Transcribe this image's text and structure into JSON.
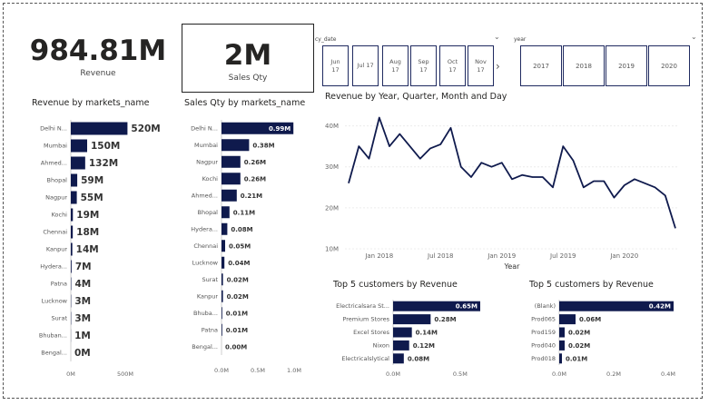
{
  "kpi_revenue": {
    "value": "984.81M",
    "label": "Revenue"
  },
  "kpi_sales": {
    "value": "2M",
    "label": "Sales Qty"
  },
  "slicer_cy_date": {
    "label": "cy_date",
    "tiles": [
      {
        "line1": "Jun",
        "line2": "17"
      },
      {
        "line1": "Jul 17",
        "line2": ""
      },
      {
        "line1": "Aug",
        "line2": "17"
      },
      {
        "line1": "Sep",
        "line2": "17"
      },
      {
        "line1": "Oct",
        "line2": "17"
      },
      {
        "line1": "Nov",
        "line2": "17"
      }
    ],
    "next_icon": "chevron-right-icon"
  },
  "slicer_year": {
    "label": "year",
    "tiles": [
      "2017",
      "2018",
      "2019",
      "2020"
    ]
  },
  "revenue_by_market": {
    "title": "Revenue by markets_name",
    "chart_data": {
      "type": "bar",
      "orientation": "horizontal",
      "categories": [
        "Delhi N...",
        "Mumbai",
        "Ahmed...",
        "Bhopal",
        "Nagpur",
        "Kochi",
        "Chennai",
        "Kanpur",
        "Hydera...",
        "Patna",
        "Lucknow",
        "Surat",
        "Bhuban...",
        "Bengal..."
      ],
      "values": [
        520,
        150,
        132,
        59,
        55,
        19,
        18,
        14,
        7,
        4,
        3,
        3,
        1,
        0
      ],
      "labels": [
        "520M",
        "150M",
        "132M",
        "59M",
        "55M",
        "19M",
        "18M",
        "14M",
        "7M",
        "4M",
        "3M",
        "3M",
        "1M",
        "0M"
      ],
      "xlim": [
        0,
        600
      ],
      "ticks": [
        {
          "v": 0,
          "label": "0M"
        },
        {
          "v": 500,
          "label": "500M"
        }
      ],
      "color": "#0f1a4d"
    }
  },
  "sales_by_market": {
    "title": "Sales Qty by markets_name",
    "chart_data": {
      "type": "bar",
      "orientation": "horizontal",
      "categories": [
        "Delhi N...",
        "Mumbai",
        "Nagpur",
        "Kochi",
        "Ahmed...",
        "Bhopal",
        "Hydera...",
        "Chennai",
        "Lucknow",
        "Surat",
        "Kanpur",
        "Bhuba...",
        "Patna",
        "Bengal..."
      ],
      "values": [
        0.99,
        0.38,
        0.26,
        0.26,
        0.21,
        0.11,
        0.08,
        0.05,
        0.04,
        0.02,
        0.02,
        0.01,
        0.01,
        0.0
      ],
      "labels": [
        "0.99M",
        "0.38M",
        "0.26M",
        "0.26M",
        "0.21M",
        "0.11M",
        "0.08M",
        "0.05M",
        "0.04M",
        "0.02M",
        "0.02M",
        "0.01M",
        "0.01M",
        "0.00M"
      ],
      "xlim": [
        0,
        1.0
      ],
      "ticks": [
        {
          "v": 0,
          "label": "0.0M"
        },
        {
          "v": 0.5,
          "label": "0.5M"
        },
        {
          "v": 1.0,
          "label": "1.0M"
        }
      ],
      "color": "#0f1a4d"
    }
  },
  "revenue_trend": {
    "title": "Revenue by Year, Quarter, Month and Day",
    "chart_data": {
      "type": "line",
      "x": [
        "2017-10",
        "2017-11",
        "2017-12",
        "2018-01",
        "2018-02",
        "2018-03",
        "2018-04",
        "2018-05",
        "2018-06",
        "2018-07",
        "2018-08",
        "2018-09",
        "2018-10",
        "2018-11",
        "2018-12",
        "2019-01",
        "2019-02",
        "2019-03",
        "2019-04",
        "2019-05",
        "2019-06",
        "2019-07",
        "2019-08",
        "2019-09",
        "2019-10",
        "2019-11",
        "2019-12",
        "2020-01",
        "2020-02",
        "2020-03",
        "2020-04",
        "2020-05",
        "2020-06"
      ],
      "y": [
        26,
        35,
        32,
        42,
        35,
        38,
        35,
        32,
        34.5,
        35.5,
        39.5,
        30,
        27.5,
        31,
        30,
        31,
        27,
        28,
        27.5,
        27.5,
        25,
        35,
        31.5,
        25,
        26.5,
        26.5,
        22.5,
        25.5,
        27,
        26,
        25,
        23,
        15
      ],
      "xlabel": "Year",
      "ylim": [
        10,
        45
      ],
      "yticks": [
        {
          "v": 10,
          "label": "10M"
        },
        {
          "v": 20,
          "label": "20M"
        },
        {
          "v": 30,
          "label": "30M"
        },
        {
          "v": 40,
          "label": "40M"
        }
      ],
      "xticks": [
        {
          "x": "2018-01",
          "label": "Jan 2018"
        },
        {
          "x": "2018-07",
          "label": "Jul 2018"
        },
        {
          "x": "2019-01",
          "label": "Jan 2019"
        },
        {
          "x": "2019-07",
          "label": "Jul 2019"
        },
        {
          "x": "2020-01",
          "label": "Jan 2020"
        }
      ],
      "color": "#0f1a4d"
    }
  },
  "top_customers_1": {
    "title": "Top 5 customers by Revenue",
    "chart_data": {
      "type": "bar",
      "orientation": "horizontal",
      "categories": [
        "Electricalsara St...",
        "Premium Stores",
        "Excel Stores",
        "Nixon",
        "Electricalslytical"
      ],
      "values": [
        0.65,
        0.28,
        0.14,
        0.12,
        0.08
      ],
      "labels": [
        "0.65M",
        "0.28M",
        "0.14M",
        "0.12M",
        "0.08M"
      ],
      "xlim": [
        0,
        0.65
      ],
      "ticks": [
        {
          "v": 0,
          "label": "0.0M"
        },
        {
          "v": 0.5,
          "label": "0.5M"
        }
      ],
      "color": "#0f1a4d"
    }
  },
  "top_customers_2": {
    "title": "Top 5 customers by Revenue",
    "chart_data": {
      "type": "bar",
      "orientation": "horizontal",
      "categories": [
        "(Blank)",
        "Prod065",
        "Prod159",
        "Prod040",
        "Prod018"
      ],
      "values": [
        0.42,
        0.06,
        0.02,
        0.02,
        0.01
      ],
      "labels": [
        "0.42M",
        "0.06M",
        "0.02M",
        "0.02M",
        "0.01M"
      ],
      "xlim": [
        0,
        0.42
      ],
      "ticks": [
        {
          "v": 0,
          "label": "0.0M"
        },
        {
          "v": 0.2,
          "label": "0.2M"
        },
        {
          "v": 0.4,
          "label": "0.4M"
        }
      ],
      "color": "#0f1a4d"
    }
  }
}
